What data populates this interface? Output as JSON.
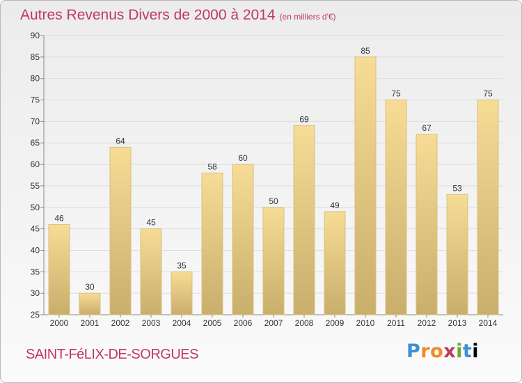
{
  "chart_data": {
    "type": "bar",
    "title": "Autres Revenus Divers de 2000 à 2014",
    "unit_note": "(en milliers d'€)",
    "categories": [
      "2000",
      "2001",
      "2002",
      "2003",
      "2004",
      "2005",
      "2006",
      "2007",
      "2008",
      "2009",
      "2010",
      "2011",
      "2012",
      "2013",
      "2014"
    ],
    "values": [
      46,
      30,
      64,
      45,
      35,
      58,
      60,
      50,
      69,
      49,
      85,
      75,
      67,
      53,
      75
    ],
    "ylim": [
      25,
      90
    ],
    "yticks": [
      25,
      30,
      35,
      40,
      45,
      50,
      55,
      60,
      65,
      70,
      75,
      80,
      85,
      90
    ],
    "grid": true,
    "bar_color_light": "#f6dc95",
    "bar_color_dark": "#c9ae6c"
  },
  "footer": {
    "commune": "SAINT-FéLIX-DE-SORGUES",
    "logo": "Proxiti",
    "logo_letters": [
      "P",
      "r",
      "o",
      "x",
      "i",
      "t",
      "i"
    ]
  }
}
